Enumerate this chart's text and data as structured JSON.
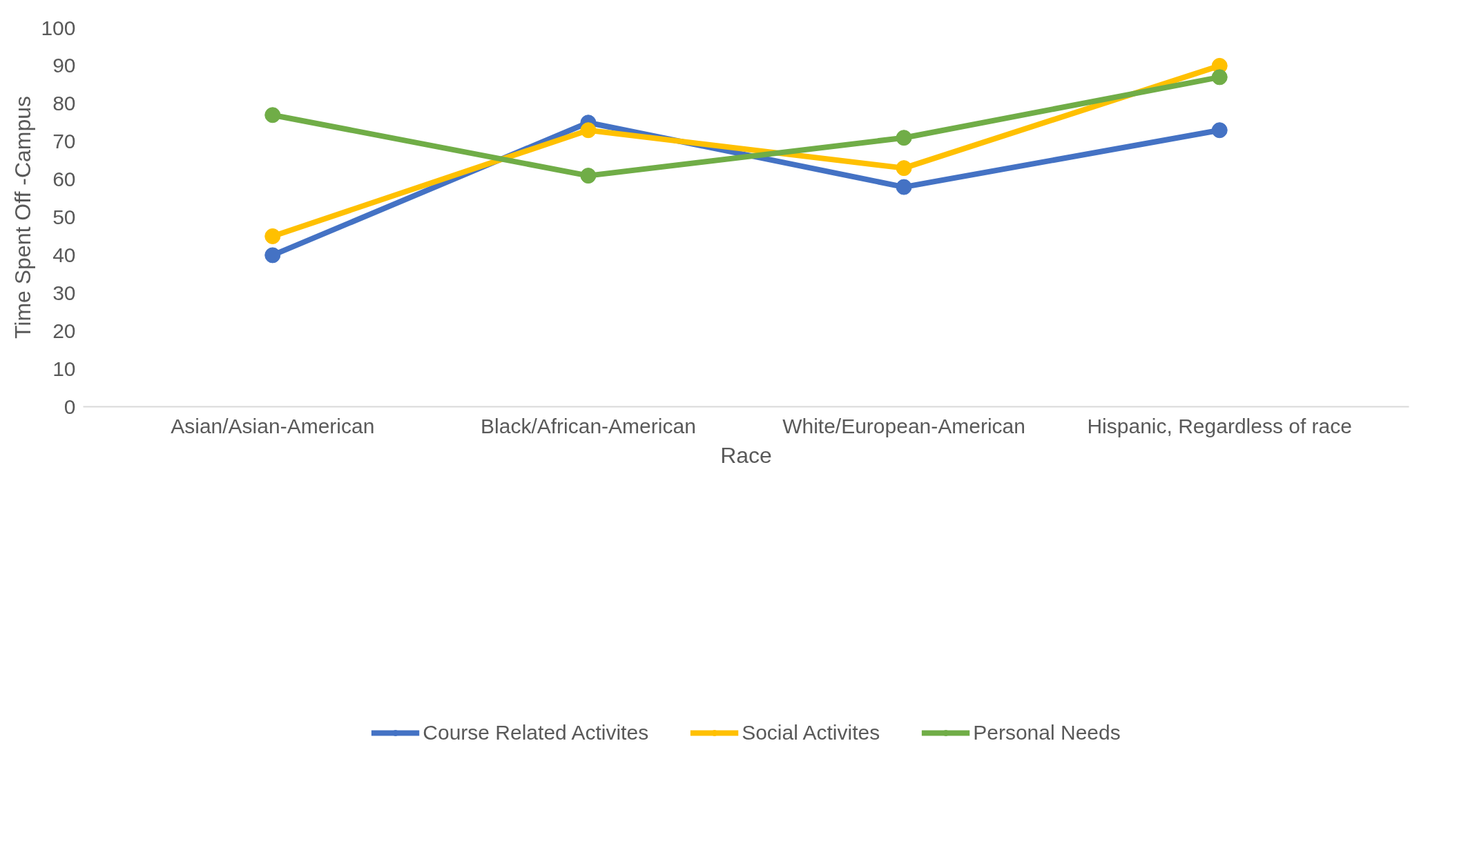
{
  "chart_data": {
    "type": "line",
    "xlabel": "Race",
    "ylabel": "Time Spent Off -Campus",
    "categories": [
      "Asian/Asian-American",
      "Black/African-American",
      "White/European-American",
      "Hispanic, Regardless of race"
    ],
    "series": [
      {
        "name": "Course Related Activites",
        "color": "#4472c4",
        "values": [
          40,
          75,
          58,
          73
        ]
      },
      {
        "name": "Social Activites",
        "color": "#ffc000",
        "values": [
          45,
          73,
          63,
          90
        ]
      },
      {
        "name": "Personal Needs",
        "color": "#70ad47",
        "values": [
          77,
          61,
          71,
          87
        ]
      }
    ],
    "ylim": [
      0,
      100
    ],
    "yticks": [
      0,
      10,
      20,
      30,
      40,
      50,
      60,
      70,
      80,
      90,
      100
    ],
    "grid": false,
    "legend": "bottom",
    "marker": "circle",
    "line_style": "solid"
  }
}
